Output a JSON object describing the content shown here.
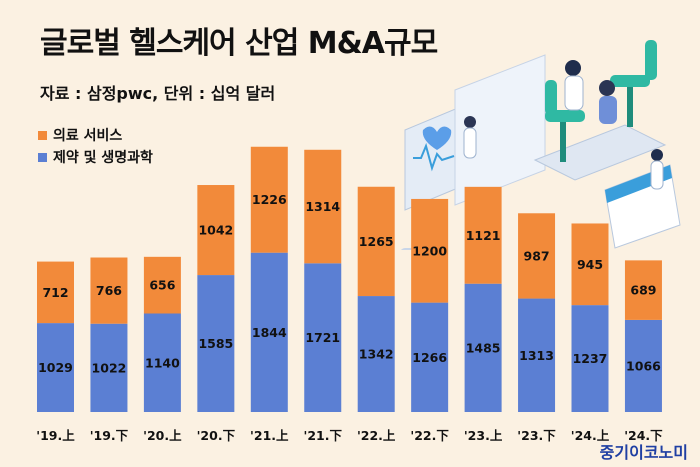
{
  "header": {
    "title": "글로벌 헬스케어 산업 M&A규모",
    "subtitle": "자료 : 삼정pwc, 단위 : 십억 달러"
  },
  "brand": "중기이코노미",
  "colors": {
    "background": "#fbf1e2",
    "medical_services": "#f28a3a",
    "pharma_life_sciences": "#5b7fd3"
  },
  "chart_data": {
    "type": "bar",
    "stacked": true,
    "categories": [
      "'19.上",
      "'19.下",
      "'20.上",
      "'20.下",
      "'21.上",
      "'21.下",
      "'22.上",
      "'22.下",
      "'23.上",
      "'23.下",
      "'24.上",
      "'24.下"
    ],
    "series": [
      {
        "name": "제약 및 생명과학",
        "values": [
          1029,
          1022,
          1140,
          1585,
          1844,
          1721,
          1342,
          1266,
          1485,
          1313,
          1237,
          1066
        ]
      },
      {
        "name": "의료 서비스",
        "values": [
          712,
          766,
          656,
          1042,
          1226,
          1314,
          1265,
          1200,
          1121,
          987,
          945,
          689
        ]
      }
    ],
    "legend_position": "top-left",
    "grid": false,
    "ylim": [
      0,
      3200
    ]
  }
}
